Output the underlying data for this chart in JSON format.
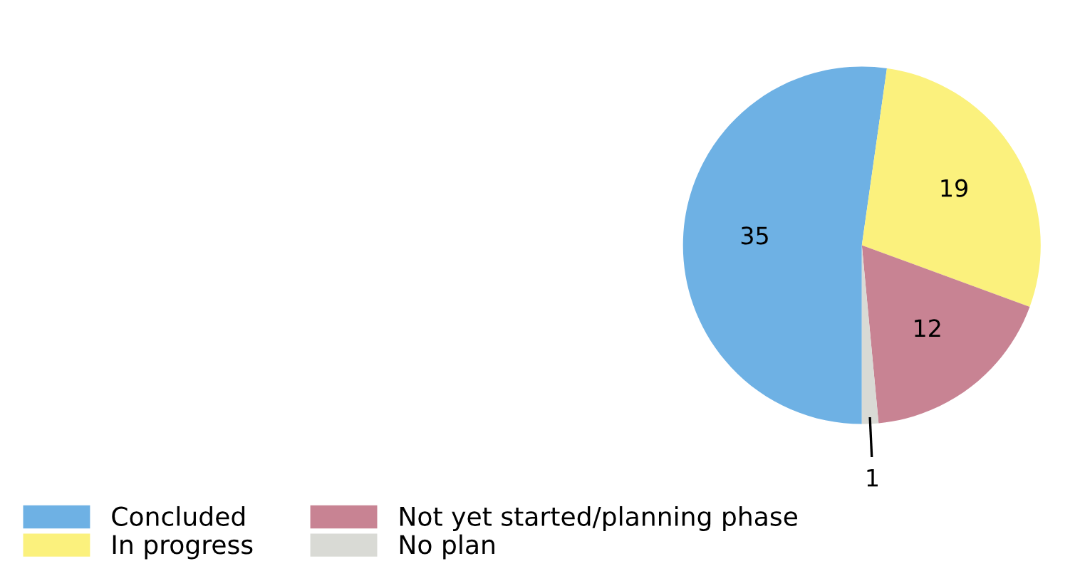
{
  "chart_data": {
    "type": "pie",
    "categories": [
      "Concluded",
      "In progress",
      "Not yet started/planning phase",
      "No plan"
    ],
    "values": [
      35,
      19,
      12,
      1
    ],
    "colors": [
      "#6eb1e4",
      "#fbf17d",
      "#c88393",
      "#d9dad5"
    ],
    "data_labels": true,
    "legend": "bottom left"
  }
}
